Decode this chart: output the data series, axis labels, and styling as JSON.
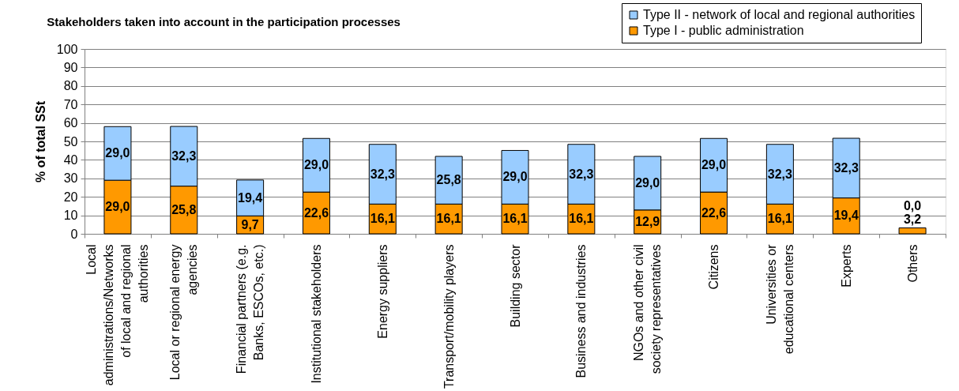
{
  "chart_data": {
    "type": "bar",
    "title": "Stakeholders taken into account in the participation processes",
    "ylabel": "% of total SSt",
    "categories": [
      "Local administrations/Networks of local and regional authorities",
      "Local or regional energy agencies",
      "Financial partners (e.g. Banks, ESCOs, etc.)",
      "Institutional stakeholders",
      "Energy suppliers",
      "Transport/mobility players",
      "Building sector",
      "Business and industries",
      "NGOs and other civil society representatives",
      "Citizens",
      "Universities or educational centers",
      "Experts",
      "Others"
    ],
    "stacked": true,
    "series": [
      {
        "name": "Type I - public administration",
        "color": "#ff9900",
        "values": [
          29.0,
          25.8,
          9.7,
          22.6,
          16.1,
          16.1,
          16.1,
          16.1,
          12.9,
          22.6,
          16.1,
          19.4,
          3.2
        ],
        "value_labels": [
          "29,0",
          "25,8",
          "9,7",
          "22,6",
          "16,1",
          "16,1",
          "16,1",
          "16,1",
          "12,9",
          "22,6",
          "16,1",
          "19,4",
          "3,2"
        ]
      },
      {
        "name": "Type II - network of local and regional authorities",
        "color": "#99ccff",
        "values": [
          29.0,
          32.3,
          19.4,
          29.0,
          32.3,
          25.8,
          29.0,
          32.3,
          29.0,
          29.0,
          32.3,
          32.3,
          0.0
        ],
        "value_labels": [
          "29,0",
          "32,3",
          "19,4",
          "29,0",
          "32,3",
          "25,8",
          "29,0",
          "32,3",
          "29,0",
          "29,0",
          "32,3",
          "32,3",
          "0,0"
        ]
      }
    ],
    "ylim": [
      0,
      100
    ],
    "yticks": [
      0,
      10,
      20,
      30,
      40,
      50,
      60,
      70,
      80,
      90,
      100
    ],
    "grid": "y",
    "legend": "top right"
  }
}
